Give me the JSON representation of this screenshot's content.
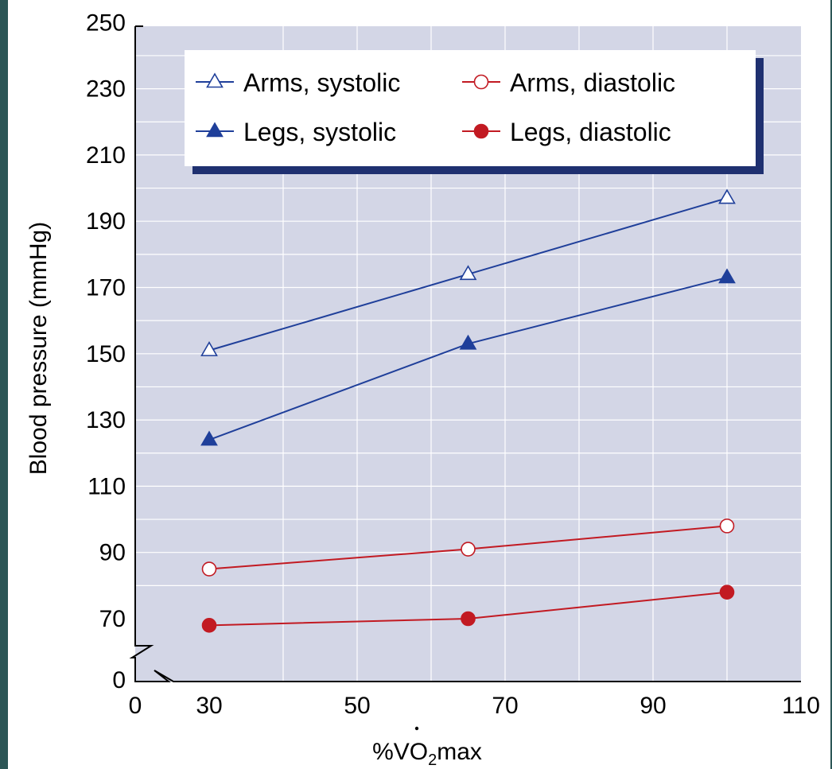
{
  "chart_data": {
    "type": "line",
    "title": "",
    "xlabel": {
      "prefix": "%",
      "v": "V",
      "sub": "O",
      "subscript": "2",
      "suffix": "max"
    },
    "ylabel": "Blood pressure (mmHg)",
    "x_ticks": [
      30,
      50,
      70,
      90,
      110
    ],
    "x_origin_label": "0",
    "y_ticks": [
      70,
      90,
      110,
      130,
      150,
      170,
      190,
      210,
      230,
      250
    ],
    "y_origin_label": "0",
    "xlim": [
      20,
      110
    ],
    "ylim": [
      58,
      250
    ],
    "axis_break": true,
    "grid": true,
    "legend_position": "top",
    "x": [
      30,
      65,
      100
    ],
    "series": [
      {
        "name": "Arms, systolic",
        "values": [
          151,
          174,
          197
        ],
        "color": "#1f3f9a",
        "marker": "triangle",
        "filled": false
      },
      {
        "name": "Arms, diastolic",
        "values": [
          85,
          91,
          98
        ],
        "color": "#c21a22",
        "marker": "circle",
        "filled": false
      },
      {
        "name": "Legs, systolic",
        "values": [
          124,
          153,
          173
        ],
        "color": "#1f3f9a",
        "marker": "triangle",
        "filled": true
      },
      {
        "name": "Legs, diastolic",
        "values": [
          68,
          70,
          78
        ],
        "color": "#c21a22",
        "marker": "circle",
        "filled": true
      }
    ],
    "colors": {
      "plot_background": "#d3d6e6",
      "grid": "#ffffff",
      "legend_shadow": "#1f3070"
    }
  }
}
